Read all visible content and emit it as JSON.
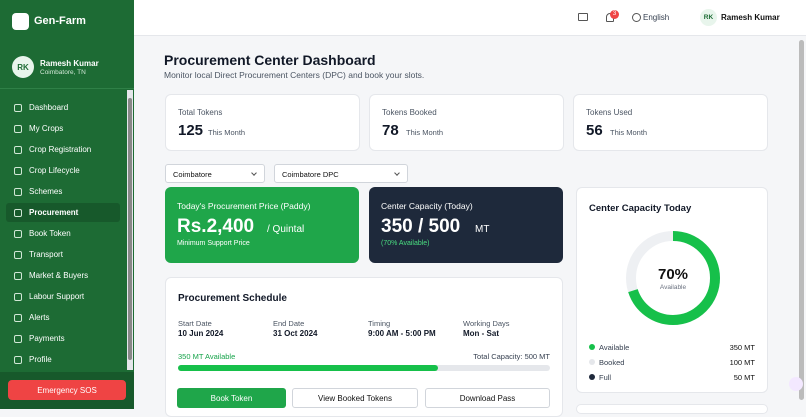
{
  "sidebar": {
    "brand": "Gen-Farm",
    "user": {
      "initials": "RK",
      "name": "Ramesh Kumar",
      "location": "Coimbatore, TN"
    },
    "nav": [
      "Dashboard",
      "My Crops",
      "Crop Registration",
      "Crop Lifecycle",
      "Schemes",
      "Procurement",
      "Book Token",
      "Transport",
      "Market & Buyers",
      "Labour Support",
      "Alerts",
      "Payments",
      "Profile"
    ],
    "sos": "Emergency SOS"
  },
  "header": {
    "notifications": 3,
    "language": "English",
    "user_initials": "RK",
    "user_name": "Ramesh Kumar"
  },
  "page": {
    "title": "Procurement Center Dashboard",
    "subtitle": "Monitor local Direct Procurement Centers (DPC) and book your slots."
  },
  "stats": [
    {
      "label": "Total Tokens",
      "value": 125,
      "unit": "This Month"
    },
    {
      "label": "Tokens Booked",
      "value": 78,
      "unit": "This Month"
    },
    {
      "label": "Tokens Used",
      "value": 56,
      "unit": "This Month"
    }
  ],
  "filters": [
    "Coimbatore",
    "Coimbatore DPC"
  ],
  "price_card": {
    "label": "Today's Procurement Price (Paddy)",
    "value": "Rs.2,400",
    "unit": "/ Quintal",
    "note": "Minimum Support Price"
  },
  "capacity_card": {
    "label": "Center Capacity (Today)",
    "value": "350 / 500",
    "unit": "MT",
    "note": "(70% Available)"
  },
  "schedule": {
    "title": "Procurement Schedule",
    "fields": [
      {
        "label": "Start Date",
        "value": "10 Jun 2024"
      },
      {
        "label": "End Date",
        "value": "31 Oct 2024"
      },
      {
        "label": "Timing",
        "value": "9:00 AM - 5:00 PM"
      },
      {
        "label": "Working Days",
        "value": "Mon - Sat"
      }
    ],
    "available": "350 MT Available",
    "total": "Total Capacity: 500 MT",
    "progress": 70,
    "buttons": [
      "Book Token",
      "View Booked Tokens",
      "Download Pass"
    ]
  },
  "capacity_today": {
    "title": "Center Capacity Today",
    "percent": "70%",
    "caption": "Available",
    "donut": 70,
    "legend": [
      {
        "name": "Available",
        "value": "350 MT",
        "color": "#16c04a"
      },
      {
        "name": "Booked",
        "value": "100 MT",
        "color": "#e5e7eb"
      },
      {
        "name": "Full",
        "value": "50 MT",
        "color": "#1e293b"
      }
    ]
  }
}
